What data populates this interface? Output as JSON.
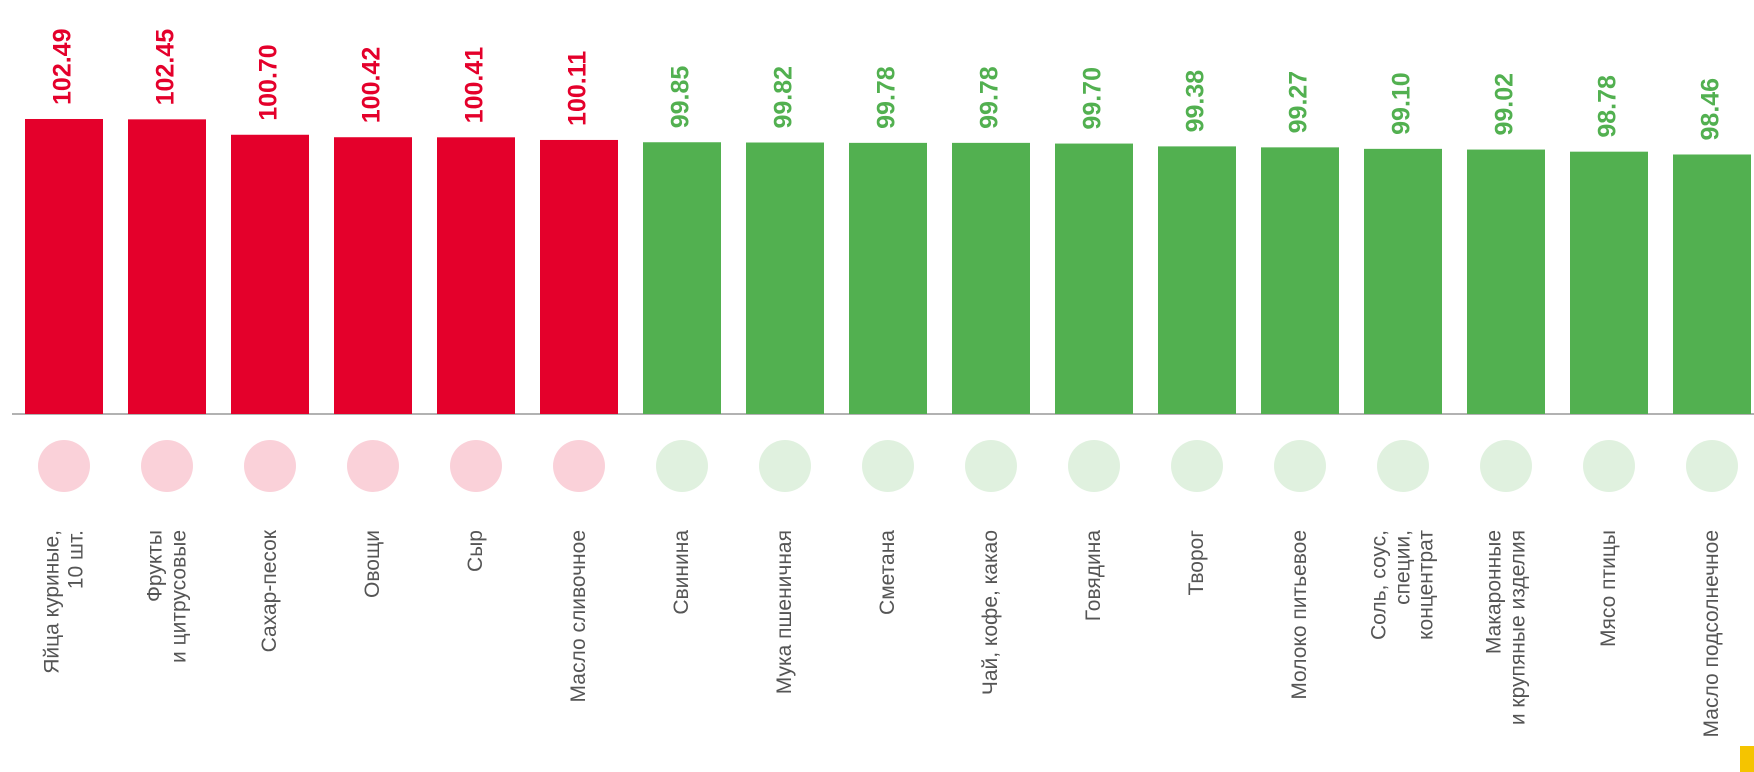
{
  "chart_data": {
    "type": "bar",
    "categories": [
      "Яйца куриные,\n10 шт.",
      "Фрукты\nи цитрусовые",
      "Сахар-песок",
      "Овощи",
      "Сыр",
      "Масло сливочное",
      "Свинина",
      "Мука пшеничная",
      "Сметана",
      "Чай, кофе, какао",
      "Говядина",
      "Творог",
      "Молоко питьевое",
      "Соль, соус,\nспеции,\nконцентрат",
      "Макаронные\nи крупяные изделия",
      "Мясо птицы",
      "Масло подсолнечное"
    ],
    "values": [
      102.49,
      102.45,
      100.7,
      100.42,
      100.41,
      100.11,
      99.85,
      99.82,
      99.78,
      99.78,
      99.7,
      99.38,
      99.27,
      99.1,
      99.02,
      98.78,
      98.46
    ],
    "value_labels": [
      "102.49",
      "102.45",
      "100.70",
      "100.42",
      "100.41",
      "100.11",
      "99.85",
      "99.82",
      "99.78",
      "99.78",
      "99.70",
      "99.38",
      "99.27",
      "99.10",
      "99.02",
      "98.78",
      "98.46"
    ],
    "colors": [
      "#e4002b",
      "#e4002b",
      "#e4002b",
      "#e4002b",
      "#e4002b",
      "#e4002b",
      "#52b050",
      "#52b050",
      "#52b050",
      "#52b050",
      "#52b050",
      "#52b050",
      "#52b050",
      "#52b050",
      "#52b050",
      "#52b050",
      "#52b050"
    ],
    "ylim": [
      69,
      103
    ]
  }
}
